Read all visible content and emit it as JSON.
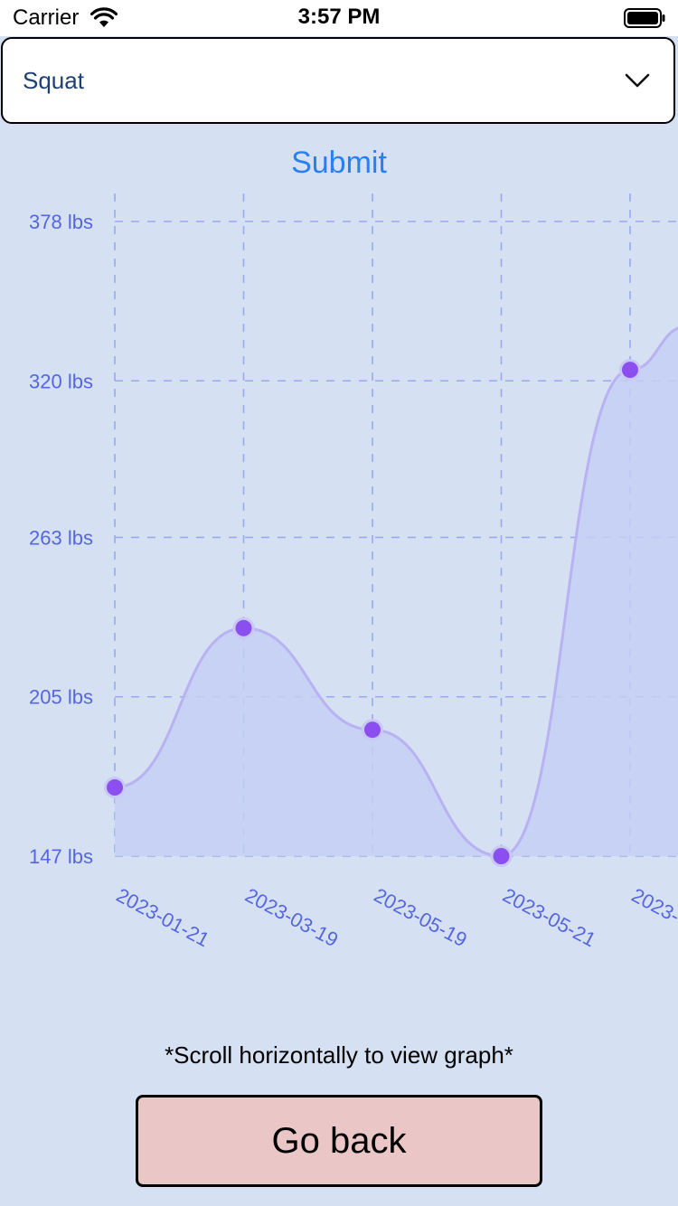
{
  "status_bar": {
    "carrier": "Carrier",
    "time": "3:57 PM"
  },
  "exercise_select": {
    "value": "Squat",
    "icon": "chevron-down-icon"
  },
  "submit_label": "Submit",
  "chart_data": {
    "type": "area",
    "x": [
      "2023-01-21",
      "2023-03-19",
      "2023-05-19",
      "2023-05-21",
      "2023-"
    ],
    "values": [
      172,
      230,
      193,
      147,
      324
    ],
    "ylabel": "",
    "xlabel": "",
    "y_tick_labels": [
      "378 lbs",
      "320 lbs",
      "263 lbs",
      "205 lbs",
      "147 lbs"
    ],
    "y_ticks": [
      378,
      320,
      263,
      205,
      147
    ],
    "ylim": [
      147,
      378
    ],
    "grid": true,
    "colors": {
      "line": "#b9b2f2",
      "fill": "#c4cff3",
      "point": "#8b4ff0",
      "point_halo": "#c7c8f4",
      "grid": "#9aa9ec",
      "axis_label": "#5566de"
    }
  },
  "scroll_hint": "*Scroll horizontally to view graph*",
  "go_back_label": "Go back"
}
